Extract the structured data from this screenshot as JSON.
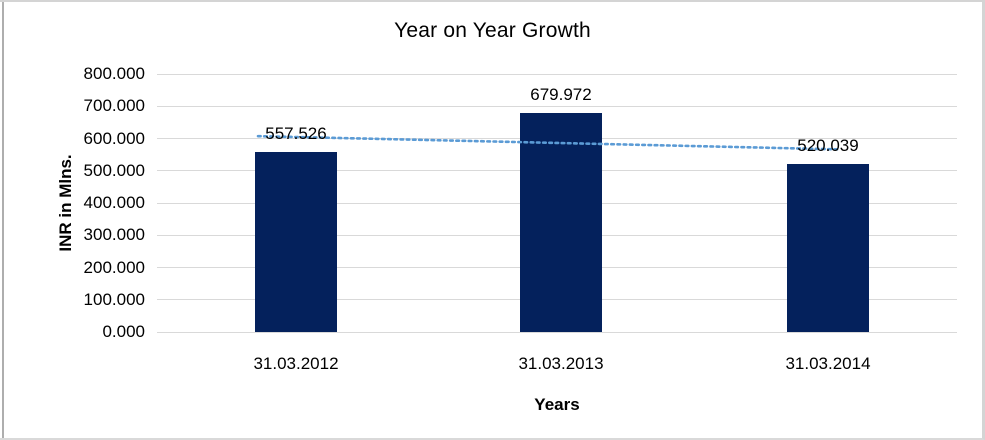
{
  "chart_data": {
    "type": "bar",
    "title": "Year on Year Growth",
    "xlabel": "Years",
    "ylabel": "INR in Mlns.",
    "categories": [
      "31.03.2012",
      "31.03.2013",
      "31.03.2014"
    ],
    "values": [
      557.526,
      679.972,
      520.039
    ],
    "data_labels": [
      "557.526",
      "679.972",
      "520.039"
    ],
    "ylim": [
      0,
      800
    ],
    "ytick_step": 100,
    "ytick_labels": [
      "0.000",
      "100.000",
      "200.000",
      "300.000",
      "400.000",
      "500.000",
      "600.000",
      "700.000",
      "800.000"
    ],
    "grid": true,
    "legend": "none",
    "trendline": {
      "type": "linear",
      "style": "dotted",
      "start_value": 604.6,
      "end_value": 567.1
    },
    "colors": {
      "bar": "#04215c",
      "gridline": "#d9d9d9",
      "trendline": "#5b9bd5",
      "text": "#000000",
      "frame": "#d4d4d4"
    }
  }
}
